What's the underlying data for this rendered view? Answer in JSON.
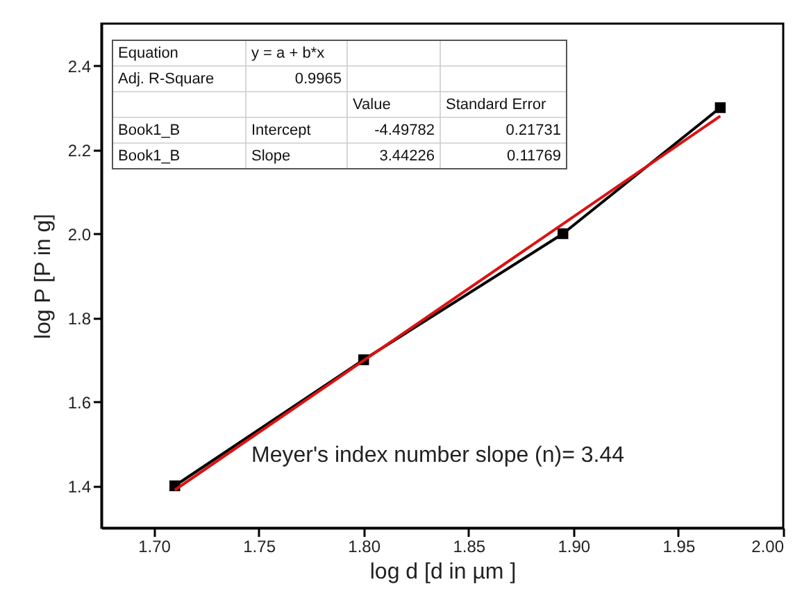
{
  "chart_data": {
    "type": "line",
    "xlabel": "log d [d in µm ]",
    "ylabel": "log P [P in g]",
    "x": [
      1.71,
      1.8,
      1.895,
      1.97
    ],
    "series": [
      {
        "color": "#000000",
        "marker": "square",
        "values": [
          1.4,
          1.7,
          2.0,
          2.3
        ]
      },
      {
        "color": "#dd1111",
        "marker": "none",
        "x": [
          1.71,
          1.97
        ],
        "values": [
          1.39,
          2.28
        ]
      }
    ],
    "xlim": [
      1.675,
      2.0
    ],
    "ylim": [
      1.3,
      2.5
    ],
    "xticks": [
      {
        "value": 1.7,
        "label": "1.70"
      },
      {
        "value": 1.75,
        "label": "1.75"
      },
      {
        "value": 1.8,
        "label": "1.80"
      },
      {
        "value": 1.85,
        "label": "1.85"
      },
      {
        "value": 1.9,
        "label": "1.90"
      },
      {
        "value": 1.95,
        "label": "1.95"
      },
      {
        "value": 2.0,
        "label": "2.00"
      }
    ],
    "yticks": [
      1.4,
      1.6,
      1.8,
      {
        "value": 2.0,
        "label": "2.0"
      },
      2.2,
      2.4
    ],
    "grid": false,
    "annotations": [
      "Equation",
      "y = a + b*x",
      null,
      null,
      "Adj. R-Square",
      "0.9965",
      null,
      null,
      null,
      null,
      "Value",
      "Standard Error",
      "Book1_B",
      "Intercept",
      "-4.49782",
      "0.21731",
      "Book1_B",
      "Slope",
      "3.44226",
      "0.11769",
      "Meyer's index number slope (n)= 3.44"
    ]
  }
}
